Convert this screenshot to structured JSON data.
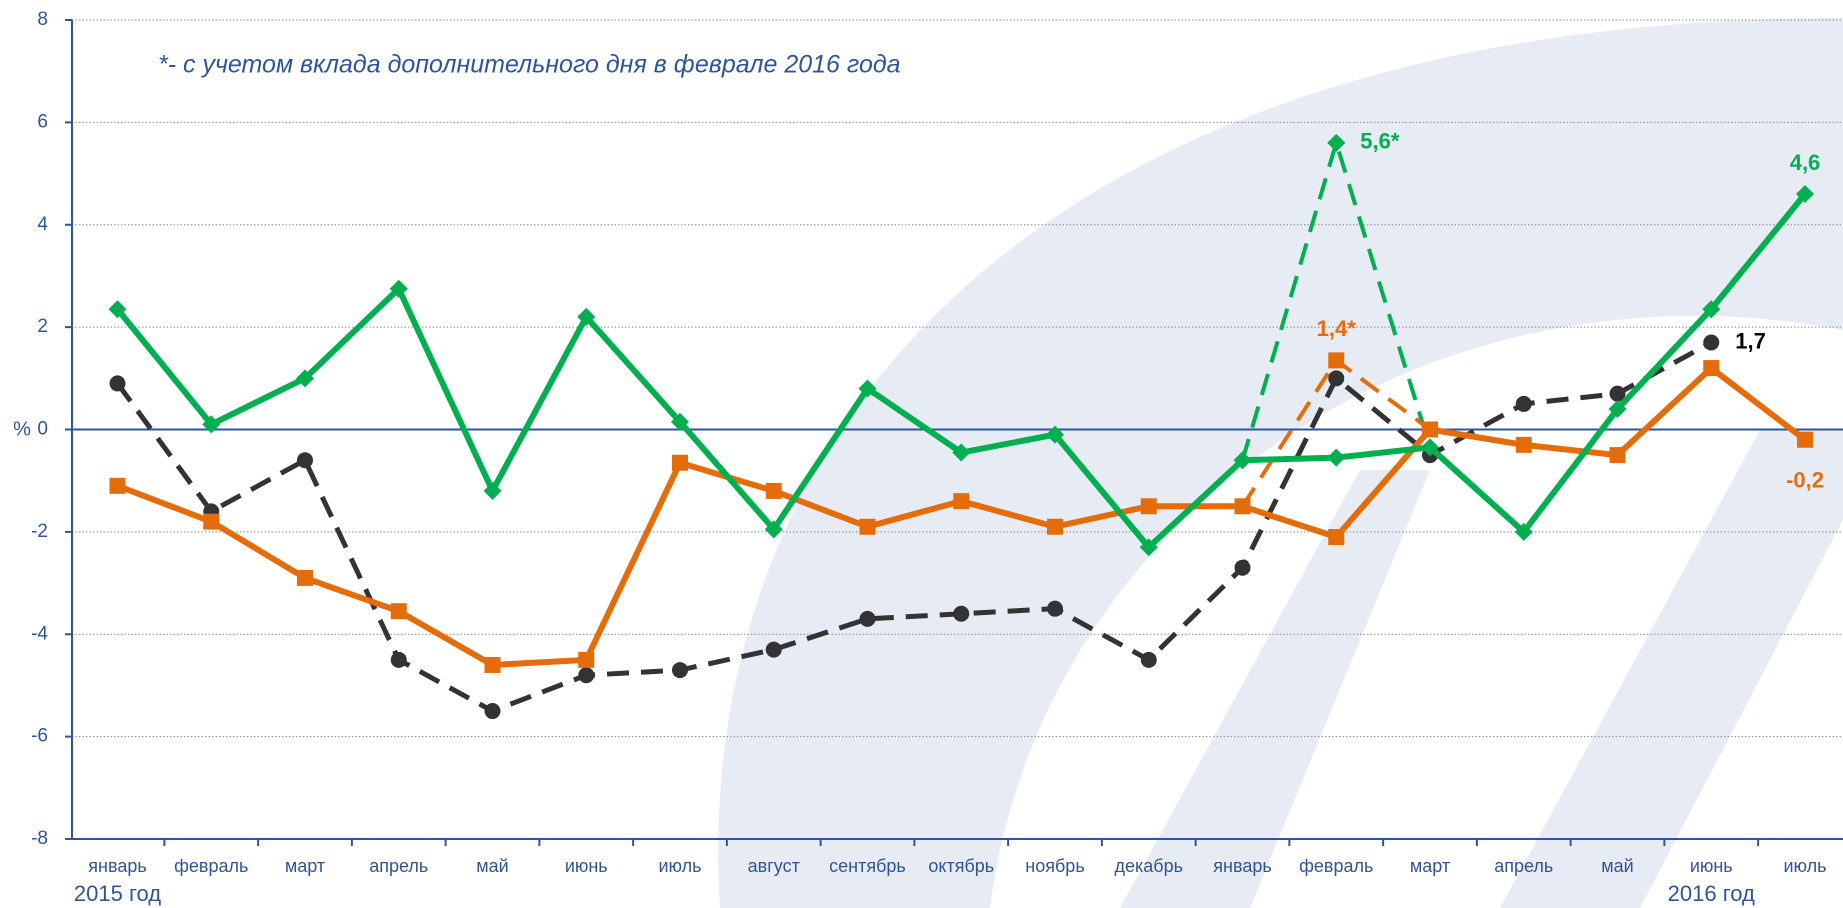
{
  "chart_data": {
    "type": "line",
    "note": "*- с учетом вклада дополнительного дня в феврале 2016  года",
    "y_label": "%",
    "categories": [
      "январь",
      "февраль",
      "март",
      "апрель",
      "май",
      "июнь",
      "июль",
      "август",
      "сентябрь",
      "октябрь",
      "ноябрь",
      "декабрь",
      "январь",
      "февраль",
      "март",
      "апрель",
      "май",
      "июнь",
      "июль"
    ],
    "period_labels": [
      "2015 год",
      "2016 год"
    ],
    "ylim": [
      -8,
      8
    ],
    "yticks": [
      -8,
      -6,
      -4,
      -2,
      0,
      2,
      4,
      6,
      8
    ],
    "grid": true,
    "series": [
      {
        "color": "#00b050",
        "marker": "diamond",
        "dashed": false,
        "values": [
          2.35,
          0.1,
          1.0,
          2.75,
          -1.2,
          2.2,
          0.15,
          -1.95,
          0.8,
          -0.45,
          -0.1,
          -2.3,
          -0.6,
          -0.55,
          -0.35,
          -2.0,
          0.4,
          2.35,
          4.6
        ],
        "value_labels": [
          null,
          null,
          null,
          null,
          null,
          null,
          null,
          null,
          null,
          null,
          null,
          null,
          null,
          null,
          null,
          null,
          null,
          null,
          "4,6"
        ]
      },
      {
        "color": "#e46c0a",
        "marker": "square",
        "dashed": false,
        "values": [
          -1.1,
          -1.8,
          -2.9,
          -3.55,
          -4.6,
          -4.5,
          -0.65,
          -1.2,
          -1.9,
          -1.4,
          -1.9,
          -1.5,
          -1.5,
          -2.1,
          0.0,
          -0.3,
          -0.5,
          1.2,
          -0.2
        ],
        "value_labels": [
          null,
          null,
          null,
          null,
          null,
          null,
          null,
          null,
          null,
          null,
          null,
          null,
          null,
          null,
          null,
          null,
          null,
          null,
          "-0,2"
        ]
      },
      {
        "color": "#333333",
        "marker": "circle",
        "dashed": true,
        "values": [
          0.9,
          -1.6,
          -0.6,
          -4.5,
          -5.5,
          -4.8,
          -4.7,
          -4.3,
          -3.7,
          -3.6,
          -3.5,
          -4.5,
          -2.7,
          1.0,
          -0.5,
          0.5,
          0.7,
          1.7,
          null
        ],
        "value_labels": [
          null,
          null,
          null,
          null,
          null,
          null,
          null,
          null,
          null,
          null,
          null,
          null,
          null,
          null,
          null,
          null,
          null,
          "1,7",
          null
        ]
      },
      {
        "color": "#00b050",
        "marker": "diamond",
        "dashed": true,
        "values": [
          null,
          null,
          null,
          null,
          null,
          null,
          null,
          null,
          null,
          null,
          null,
          null,
          -0.6,
          5.6,
          -0.35,
          null,
          null,
          null,
          null
        ],
        "value_labels": [
          null,
          null,
          null,
          null,
          null,
          null,
          null,
          null,
          null,
          null,
          null,
          null,
          null,
          "5,6*",
          null,
          null,
          null,
          null,
          null
        ]
      },
      {
        "color": "#e46c0a",
        "marker": "square",
        "dashed": true,
        "values": [
          null,
          null,
          null,
          null,
          null,
          null,
          null,
          null,
          null,
          null,
          null,
          null,
          -1.5,
          1.35,
          0.0,
          null,
          null,
          null,
          null
        ],
        "value_labels": [
          null,
          null,
          null,
          null,
          null,
          null,
          null,
          null,
          null,
          null,
          null,
          null,
          null,
          "1,4*",
          null,
          null,
          null,
          null,
          null
        ]
      }
    ]
  }
}
